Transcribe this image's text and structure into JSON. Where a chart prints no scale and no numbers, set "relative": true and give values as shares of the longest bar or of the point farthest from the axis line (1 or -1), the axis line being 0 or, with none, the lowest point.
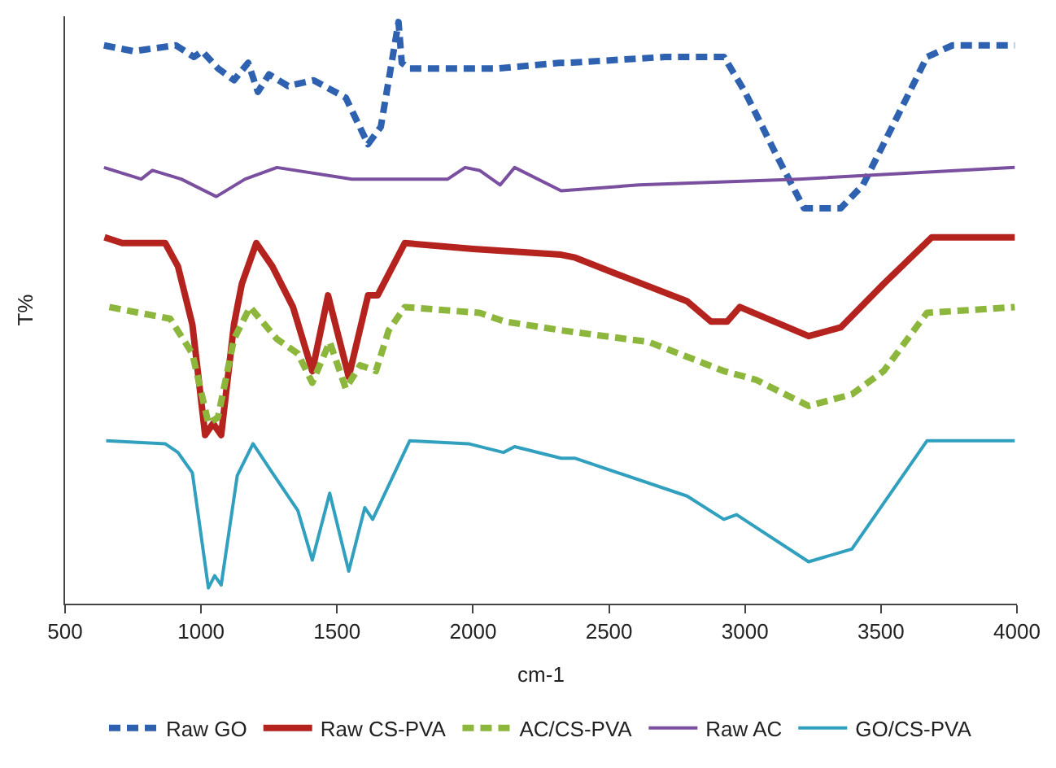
{
  "chart_data": {
    "type": "line",
    "relative": true,
    "xlabel": "cm-1",
    "ylabel": "T%",
    "xlim": [
      500,
      4000
    ],
    "xticks": [
      500,
      1000,
      1500,
      2000,
      2500,
      3000,
      3500,
      4000
    ],
    "legend": "bottom",
    "marker": "none",
    "series": [
      {
        "name": "Raw GO",
        "color": "#2e62b0",
        "line_style": "dashed",
        "x": [
          643,
          751,
          907,
          974,
          1004,
          1063,
          1121,
          1173,
          1209,
          1250,
          1320,
          1414,
          1532,
          1614,
          1661,
          1708,
          1726,
          1738,
          1767,
          1925,
          2083,
          2318,
          2353,
          2705,
          2846,
          2923,
          3000,
          3117,
          3217,
          3276,
          3352,
          3434,
          3552,
          3669,
          3763,
          3992
        ],
        "values": [
          0.96,
          0.95,
          0.96,
          0.94,
          0.95,
          0.92,
          0.9,
          0.93,
          0.88,
          0.91,
          0.89,
          0.9,
          0.87,
          0.79,
          0.82,
          0.95,
          1.0,
          0.93,
          0.92,
          0.92,
          0.92,
          0.93,
          0.93,
          0.94,
          0.94,
          0.94,
          0.88,
          0.77,
          0.68,
          0.68,
          0.68,
          0.72,
          0.83,
          0.94,
          0.96,
          0.96
        ]
      },
      {
        "name": "Raw CS-PVA",
        "color": "#b5231f",
        "line_style": "solid",
        "x": [
          645,
          710,
          868,
          915,
          968,
          1015,
          1044,
          1074,
          1121,
          1150,
          1203,
          1262,
          1338,
          1409,
          1467,
          1543,
          1614,
          1649,
          1749,
          2001,
          2324,
          2376,
          2511,
          2787,
          2875,
          2934,
          2981,
          3234,
          3352,
          3510,
          3687,
          3992
        ],
        "values": [
          0.63,
          0.62,
          0.62,
          0.58,
          0.48,
          0.29,
          0.31,
          0.29,
          0.48,
          0.55,
          0.62,
          0.58,
          0.51,
          0.4,
          0.53,
          0.39,
          0.53,
          0.53,
          0.62,
          0.61,
          0.6,
          0.595,
          0.57,
          0.52,
          0.485,
          0.485,
          0.51,
          0.46,
          0.475,
          0.55,
          0.63,
          0.63
        ]
      },
      {
        "name": "AC/CS-PVA",
        "color": "#8db63c",
        "line_style": "dashed",
        "x": [
          663,
          886,
          968,
          1027,
          1062,
          1121,
          1180,
          1279,
          1356,
          1409,
          1473,
          1532,
          1585,
          1643,
          1690,
          1749,
          2024,
          2118,
          2324,
          2646,
          2922,
          3040,
          3234,
          3393,
          3510,
          3669,
          3992
        ],
        "values": [
          0.51,
          0.49,
          0.43,
          0.31,
          0.32,
          0.455,
          0.51,
          0.455,
          0.43,
          0.38,
          0.45,
          0.37,
          0.41,
          0.4,
          0.47,
          0.51,
          0.5,
          0.485,
          0.47,
          0.45,
          0.4,
          0.385,
          0.34,
          0.36,
          0.4,
          0.5,
          0.51
        ]
      },
      {
        "name": "Raw AC",
        "color": "#7a4fa0",
        "line_style": "solid",
        "x": [
          643,
          780,
          821,
          927,
          1056,
          1162,
          1279,
          1555,
          1907,
          1971,
          2024,
          2100,
          2153,
          2324,
          2611,
          3199,
          3992
        ],
        "values": [
          0.75,
          0.73,
          0.745,
          0.73,
          0.7,
          0.73,
          0.75,
          0.73,
          0.73,
          0.75,
          0.745,
          0.72,
          0.75,
          0.71,
          0.72,
          0.73,
          0.75
        ]
      },
      {
        "name": "GO/CS-PVA",
        "color": "#31a0bf",
        "line_style": "solid",
        "x": [
          651,
          868,
          915,
          968,
          1027,
          1050,
          1074,
          1133,
          1191,
          1262,
          1356,
          1409,
          1473,
          1543,
          1602,
          1631,
          1767,
          1983,
          2112,
          2153,
          2324,
          2376,
          2787,
          2922,
          2969,
          3234,
          3393,
          3669,
          3992
        ],
        "values": [
          0.28,
          0.275,
          0.26,
          0.225,
          0.027,
          0.048,
          0.032,
          0.22,
          0.275,
          0.225,
          0.16,
          0.075,
          0.19,
          0.056,
          0.165,
          0.145,
          0.28,
          0.275,
          0.26,
          0.27,
          0.25,
          0.25,
          0.185,
          0.145,
          0.153,
          0.072,
          0.094,
          0.28,
          0.28
        ]
      }
    ]
  }
}
